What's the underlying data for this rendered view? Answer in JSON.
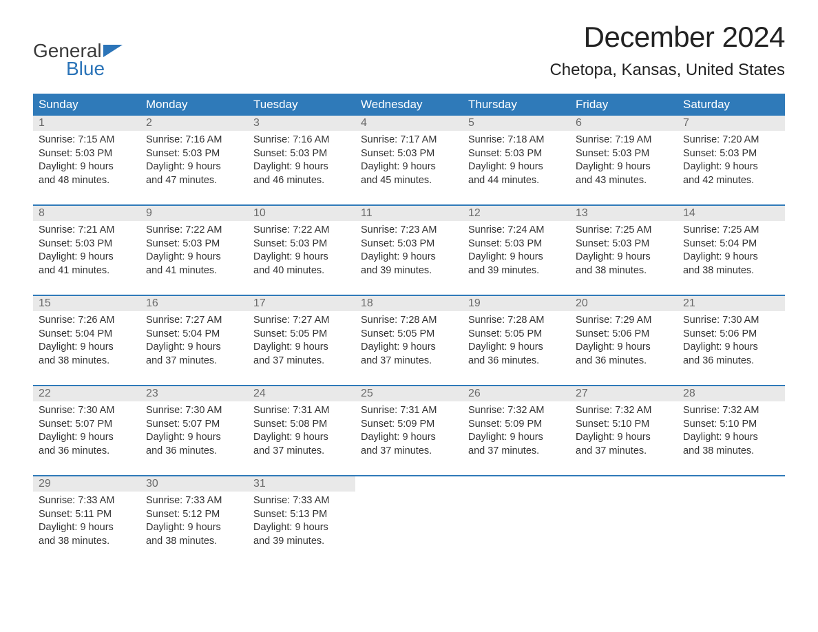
{
  "logo": {
    "text_top": "General",
    "text_bottom": "Blue",
    "flag_color": "#2b74b8",
    "top_color": "#3b3b3b"
  },
  "title": "December 2024",
  "location": "Chetopa, Kansas, United States",
  "colors": {
    "header_bg": "#2f7ab9",
    "header_text": "#ffffff",
    "daynum_bg": "#e9e9e9",
    "daynum_text": "#6b6b6b",
    "week_border": "#2f7ab9",
    "body_text": "#333333",
    "background": "#ffffff"
  },
  "typography": {
    "title_fontsize": 42,
    "location_fontsize": 24,
    "header_fontsize": 17,
    "daynum_fontsize": 16,
    "detail_fontsize": 14.5
  },
  "day_headers": [
    "Sunday",
    "Monday",
    "Tuesday",
    "Wednesday",
    "Thursday",
    "Friday",
    "Saturday"
  ],
  "weeks": [
    [
      {
        "n": "1",
        "sunrise": "Sunrise: 7:15 AM",
        "sunset": "Sunset: 5:03 PM",
        "d1": "Daylight: 9 hours",
        "d2": "and 48 minutes."
      },
      {
        "n": "2",
        "sunrise": "Sunrise: 7:16 AM",
        "sunset": "Sunset: 5:03 PM",
        "d1": "Daylight: 9 hours",
        "d2": "and 47 minutes."
      },
      {
        "n": "3",
        "sunrise": "Sunrise: 7:16 AM",
        "sunset": "Sunset: 5:03 PM",
        "d1": "Daylight: 9 hours",
        "d2": "and 46 minutes."
      },
      {
        "n": "4",
        "sunrise": "Sunrise: 7:17 AM",
        "sunset": "Sunset: 5:03 PM",
        "d1": "Daylight: 9 hours",
        "d2": "and 45 minutes."
      },
      {
        "n": "5",
        "sunrise": "Sunrise: 7:18 AM",
        "sunset": "Sunset: 5:03 PM",
        "d1": "Daylight: 9 hours",
        "d2": "and 44 minutes."
      },
      {
        "n": "6",
        "sunrise": "Sunrise: 7:19 AM",
        "sunset": "Sunset: 5:03 PM",
        "d1": "Daylight: 9 hours",
        "d2": "and 43 minutes."
      },
      {
        "n": "7",
        "sunrise": "Sunrise: 7:20 AM",
        "sunset": "Sunset: 5:03 PM",
        "d1": "Daylight: 9 hours",
        "d2": "and 42 minutes."
      }
    ],
    [
      {
        "n": "8",
        "sunrise": "Sunrise: 7:21 AM",
        "sunset": "Sunset: 5:03 PM",
        "d1": "Daylight: 9 hours",
        "d2": "and 41 minutes."
      },
      {
        "n": "9",
        "sunrise": "Sunrise: 7:22 AM",
        "sunset": "Sunset: 5:03 PM",
        "d1": "Daylight: 9 hours",
        "d2": "and 41 minutes."
      },
      {
        "n": "10",
        "sunrise": "Sunrise: 7:22 AM",
        "sunset": "Sunset: 5:03 PM",
        "d1": "Daylight: 9 hours",
        "d2": "and 40 minutes."
      },
      {
        "n": "11",
        "sunrise": "Sunrise: 7:23 AM",
        "sunset": "Sunset: 5:03 PM",
        "d1": "Daylight: 9 hours",
        "d2": "and 39 minutes."
      },
      {
        "n": "12",
        "sunrise": "Sunrise: 7:24 AM",
        "sunset": "Sunset: 5:03 PM",
        "d1": "Daylight: 9 hours",
        "d2": "and 39 minutes."
      },
      {
        "n": "13",
        "sunrise": "Sunrise: 7:25 AM",
        "sunset": "Sunset: 5:03 PM",
        "d1": "Daylight: 9 hours",
        "d2": "and 38 minutes."
      },
      {
        "n": "14",
        "sunrise": "Sunrise: 7:25 AM",
        "sunset": "Sunset: 5:04 PM",
        "d1": "Daylight: 9 hours",
        "d2": "and 38 minutes."
      }
    ],
    [
      {
        "n": "15",
        "sunrise": "Sunrise: 7:26 AM",
        "sunset": "Sunset: 5:04 PM",
        "d1": "Daylight: 9 hours",
        "d2": "and 38 minutes."
      },
      {
        "n": "16",
        "sunrise": "Sunrise: 7:27 AM",
        "sunset": "Sunset: 5:04 PM",
        "d1": "Daylight: 9 hours",
        "d2": "and 37 minutes."
      },
      {
        "n": "17",
        "sunrise": "Sunrise: 7:27 AM",
        "sunset": "Sunset: 5:05 PM",
        "d1": "Daylight: 9 hours",
        "d2": "and 37 minutes."
      },
      {
        "n": "18",
        "sunrise": "Sunrise: 7:28 AM",
        "sunset": "Sunset: 5:05 PM",
        "d1": "Daylight: 9 hours",
        "d2": "and 37 minutes."
      },
      {
        "n": "19",
        "sunrise": "Sunrise: 7:28 AM",
        "sunset": "Sunset: 5:05 PM",
        "d1": "Daylight: 9 hours",
        "d2": "and 36 minutes."
      },
      {
        "n": "20",
        "sunrise": "Sunrise: 7:29 AM",
        "sunset": "Sunset: 5:06 PM",
        "d1": "Daylight: 9 hours",
        "d2": "and 36 minutes."
      },
      {
        "n": "21",
        "sunrise": "Sunrise: 7:30 AM",
        "sunset": "Sunset: 5:06 PM",
        "d1": "Daylight: 9 hours",
        "d2": "and 36 minutes."
      }
    ],
    [
      {
        "n": "22",
        "sunrise": "Sunrise: 7:30 AM",
        "sunset": "Sunset: 5:07 PM",
        "d1": "Daylight: 9 hours",
        "d2": "and 36 minutes."
      },
      {
        "n": "23",
        "sunrise": "Sunrise: 7:30 AM",
        "sunset": "Sunset: 5:07 PM",
        "d1": "Daylight: 9 hours",
        "d2": "and 36 minutes."
      },
      {
        "n": "24",
        "sunrise": "Sunrise: 7:31 AM",
        "sunset": "Sunset: 5:08 PM",
        "d1": "Daylight: 9 hours",
        "d2": "and 37 minutes."
      },
      {
        "n": "25",
        "sunrise": "Sunrise: 7:31 AM",
        "sunset": "Sunset: 5:09 PM",
        "d1": "Daylight: 9 hours",
        "d2": "and 37 minutes."
      },
      {
        "n": "26",
        "sunrise": "Sunrise: 7:32 AM",
        "sunset": "Sunset: 5:09 PM",
        "d1": "Daylight: 9 hours",
        "d2": "and 37 minutes."
      },
      {
        "n": "27",
        "sunrise": "Sunrise: 7:32 AM",
        "sunset": "Sunset: 5:10 PM",
        "d1": "Daylight: 9 hours",
        "d2": "and 37 minutes."
      },
      {
        "n": "28",
        "sunrise": "Sunrise: 7:32 AM",
        "sunset": "Sunset: 5:10 PM",
        "d1": "Daylight: 9 hours",
        "d2": "and 38 minutes."
      }
    ],
    [
      {
        "n": "29",
        "sunrise": "Sunrise: 7:33 AM",
        "sunset": "Sunset: 5:11 PM",
        "d1": "Daylight: 9 hours",
        "d2": "and 38 minutes."
      },
      {
        "n": "30",
        "sunrise": "Sunrise: 7:33 AM",
        "sunset": "Sunset: 5:12 PM",
        "d1": "Daylight: 9 hours",
        "d2": "and 38 minutes."
      },
      {
        "n": "31",
        "sunrise": "Sunrise: 7:33 AM",
        "sunset": "Sunset: 5:13 PM",
        "d1": "Daylight: 9 hours",
        "d2": "and 39 minutes."
      },
      {
        "n": "",
        "sunrise": "",
        "sunset": "",
        "d1": "",
        "d2": ""
      },
      {
        "n": "",
        "sunrise": "",
        "sunset": "",
        "d1": "",
        "d2": ""
      },
      {
        "n": "",
        "sunrise": "",
        "sunset": "",
        "d1": "",
        "d2": ""
      },
      {
        "n": "",
        "sunrise": "",
        "sunset": "",
        "d1": "",
        "d2": ""
      }
    ]
  ]
}
